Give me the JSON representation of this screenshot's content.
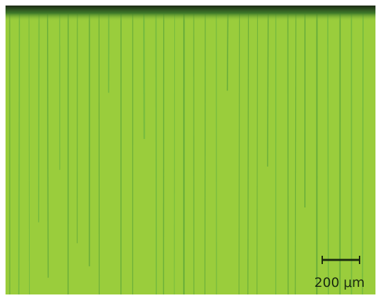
{
  "scale_bar": {
    "label": "200 μm"
  }
}
